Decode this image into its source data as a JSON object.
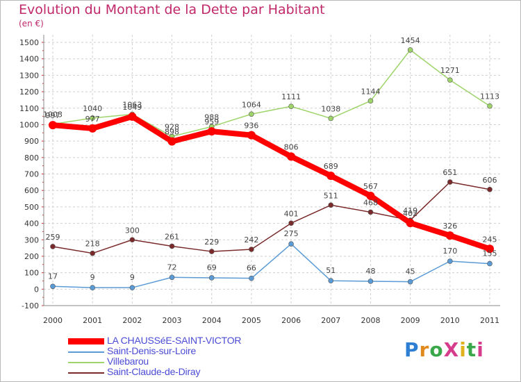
{
  "title": "Evolution du Montant de la Dette par Habitant",
  "unit_label": "(en €)",
  "logo": {
    "text": "ProXiti",
    "letter_colors": [
      "#2e7fd4",
      "#e08a1e",
      "#3aa84a",
      "#d63c8c",
      "#e0b21e",
      "#3aa84a",
      "#d63c8c"
    ]
  },
  "chart_data": {
    "type": "line",
    "title": "Evolution du Montant de la Dette par Habitant",
    "ylabel": "(en €)",
    "xlabel": "",
    "x": [
      "2000",
      "2001",
      "2002",
      "2003",
      "2004",
      "2005",
      "2006",
      "2007",
      "2008",
      "2009",
      "2010",
      "2011"
    ],
    "ylim": [
      -100,
      1500
    ],
    "yticks": [
      -100,
      0,
      100,
      200,
      300,
      400,
      500,
      600,
      700,
      800,
      900,
      1000,
      1100,
      1200,
      1300,
      1400,
      1500
    ],
    "grid": true,
    "legend_position": "bottom-left",
    "series": [
      {
        "name": "LA CHAUSSéE-SAINT-VICTOR",
        "color": "#ff0000",
        "style": "thick",
        "values": [
          997,
          977,
          1049,
          898,
          959,
          936,
          806,
          689,
          567,
          402,
          326,
          245
        ],
        "labels": [
          "997",
          "977",
          "1049",
          "898",
          "959",
          "936",
          "806",
          "689",
          "567",
          "402",
          "326",
          "245"
        ]
      },
      {
        "name": "Saint-Denis-sur-Loire",
        "color": "#5b9bd5",
        "style": "thin",
        "values": [
          17,
          9,
          9,
          72,
          69,
          66,
          275,
          51,
          48,
          45,
          170,
          155
        ],
        "labels": [
          "17",
          "9",
          "9",
          "72",
          "69",
          "66",
          "275",
          "51",
          "48",
          "45",
          "170",
          "155"
        ]
      },
      {
        "name": "Villebarou",
        "color": "#9ed46a",
        "style": "thin",
        "values": [
          1003,
          1040,
          1063,
          928,
          988,
          1064,
          1111,
          1038,
          1144,
          1454,
          1271,
          1113
        ],
        "labels": [
          "1003",
          "1040",
          "1063",
          "928",
          "988",
          "1064",
          "1111",
          "1038",
          "1144",
          "1454",
          "1271",
          "1113"
        ]
      },
      {
        "name": "Saint-Claude-de-Diray",
        "color": "#7a2a2a",
        "style": "thin",
        "values": [
          259,
          218,
          300,
          261,
          229,
          242,
          401,
          511,
          468,
          419,
          651,
          606
        ],
        "labels": [
          "259",
          "218",
          "300",
          "261",
          "229",
          "242",
          "401",
          "511",
          "468",
          "419",
          "651",
          "606"
        ]
      }
    ]
  }
}
